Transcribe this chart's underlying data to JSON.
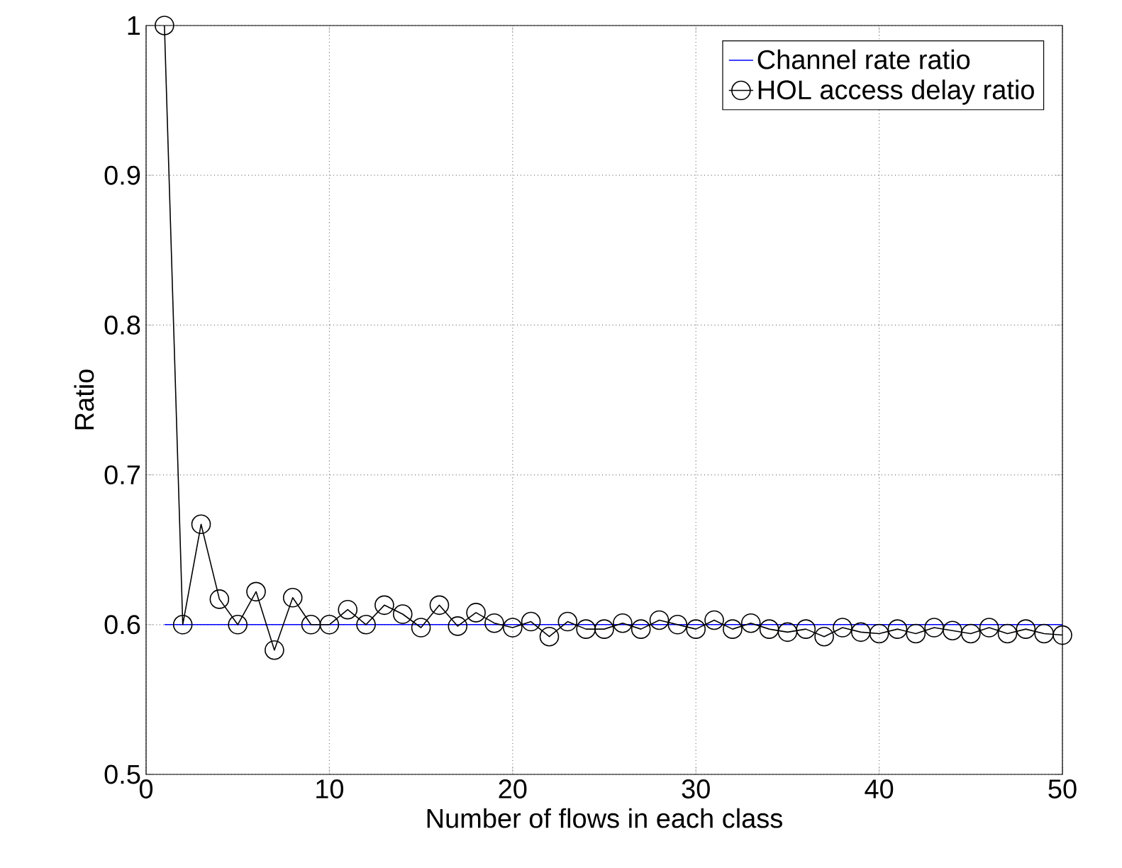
{
  "chart_data": {
    "type": "line",
    "xlabel": "Number of flows in each class",
    "ylabel": "Ratio",
    "xlim": [
      0,
      50
    ],
    "ylim": [
      0.5,
      1
    ],
    "xticks": [
      0,
      10,
      20,
      30,
      40,
      50
    ],
    "yticks": [
      0.5,
      0.6,
      0.7,
      0.8,
      0.9,
      1
    ],
    "grid": true,
    "legend": "top right",
    "series": [
      {
        "name": "Channel rate ratio",
        "color": "#0000ff",
        "marker": "none",
        "x": [
          1,
          50
        ],
        "values": [
          0.6,
          0.6
        ]
      },
      {
        "name": "HOL access delay ratio",
        "color": "#000000",
        "marker": "circle",
        "x": [
          1,
          2,
          3,
          4,
          5,
          6,
          7,
          8,
          9,
          10,
          11,
          12,
          13,
          14,
          15,
          16,
          17,
          18,
          19,
          20,
          21,
          22,
          23,
          24,
          25,
          26,
          27,
          28,
          29,
          30,
          31,
          32,
          33,
          34,
          35,
          36,
          37,
          38,
          39,
          40,
          41,
          42,
          43,
          44,
          45,
          46,
          47,
          48,
          49,
          50
        ],
        "values": [
          1.0,
          0.6,
          0.667,
          0.617,
          0.6,
          0.622,
          0.583,
          0.618,
          0.6,
          0.6,
          0.61,
          0.6,
          0.613,
          0.607,
          0.598,
          0.613,
          0.599,
          0.608,
          0.601,
          0.598,
          0.602,
          0.592,
          0.602,
          0.597,
          0.597,
          0.601,
          0.597,
          0.603,
          0.6,
          0.597,
          0.603,
          0.597,
          0.601,
          0.597,
          0.595,
          0.597,
          0.592,
          0.598,
          0.595,
          0.594,
          0.597,
          0.594,
          0.598,
          0.596,
          0.594,
          0.598,
          0.594,
          0.597,
          0.594,
          0.593
        ]
      }
    ]
  }
}
